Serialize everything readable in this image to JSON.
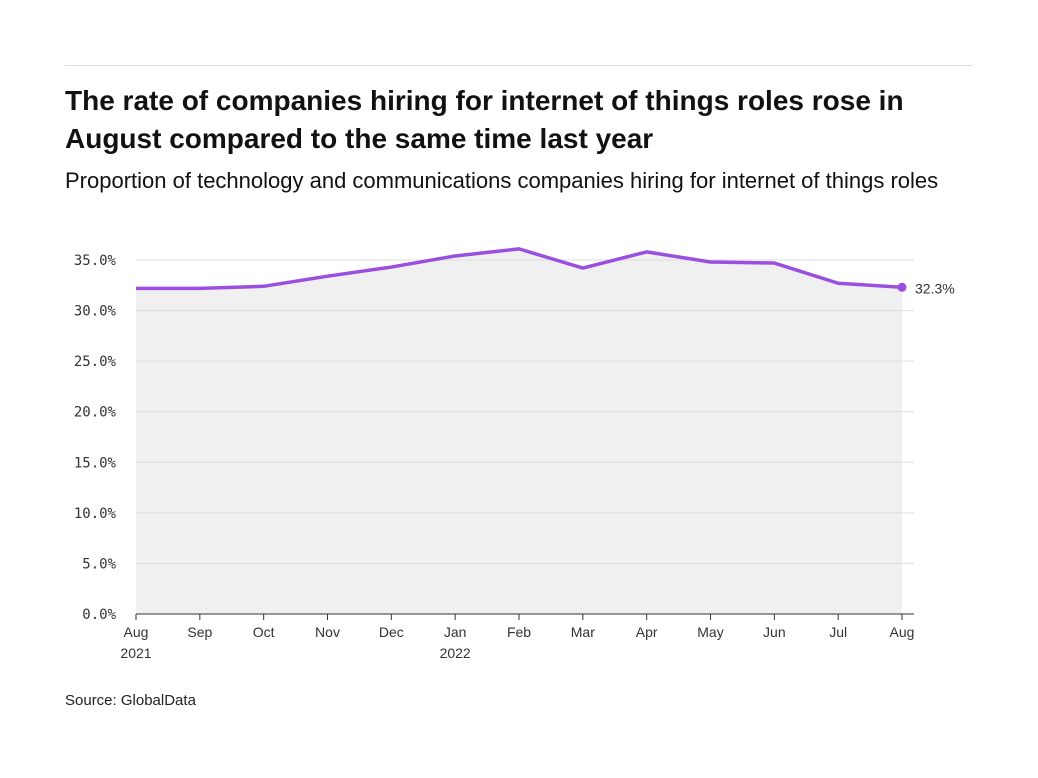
{
  "title": "The rate of companies hiring for internet of things roles rose in August compared to the same time last year",
  "subtitle": "Proportion of technology and communications companies hiring for internet of things roles",
  "source": "Source: GlobalData",
  "chart_data": {
    "type": "area",
    "title": "The rate of companies hiring for internet of things roles rose in August compared to the same time last year",
    "subtitle": "Proportion of technology and communications companies hiring for internet of things roles",
    "categories": [
      "Aug 2021",
      "Sep",
      "Oct",
      "Nov",
      "Dec",
      "Jan 2022",
      "Feb",
      "Mar",
      "Apr",
      "May",
      "Jun",
      "Jul",
      "Aug"
    ],
    "x_tick_labels": [
      [
        "Aug",
        "2021"
      ],
      [
        "Sep"
      ],
      [
        "Oct"
      ],
      [
        "Nov"
      ],
      [
        "Dec"
      ],
      [
        "Jan",
        "2022"
      ],
      [
        "Feb"
      ],
      [
        "Mar"
      ],
      [
        "Apr"
      ],
      [
        "May"
      ],
      [
        "Jun"
      ],
      [
        "Jul"
      ],
      [
        "Aug"
      ]
    ],
    "values": [
      32.2,
      32.2,
      32.4,
      33.4,
      34.3,
      35.4,
      36.1,
      34.2,
      35.8,
      34.8,
      34.7,
      32.7,
      32.3
    ],
    "unit": "%",
    "ylim": [
      0,
      35
    ],
    "y_ticks": [
      "0.0%",
      "5.0%",
      "10.0%",
      "15.0%",
      "20.0%",
      "25.0%",
      "30.0%",
      "35.0%"
    ],
    "end_label": "32.3%",
    "grid": true,
    "colors": {
      "line": "#9b4fe0",
      "fill": "#f0f0f0",
      "grid": "#dddddd"
    }
  }
}
